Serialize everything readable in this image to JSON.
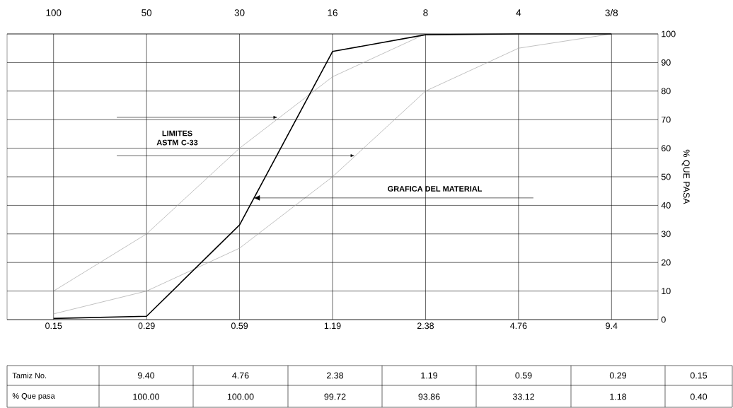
{
  "chart_data": {
    "type": "line",
    "ylabel": "% QUE PASA",
    "categories": [
      "0.15",
      "0.29",
      "0.59",
      "1.19",
      "2.38",
      "4.76",
      "9.4"
    ],
    "series": [
      {
        "color": "#a6a6a6",
        "values": [
          10,
          30,
          60,
          85,
          100,
          100,
          100
        ]
      },
      {
        "color": "#a6a6a6",
        "values": [
          2,
          10,
          25,
          50,
          80,
          95,
          100
        ]
      },
      {
        "name": "GRAFICA DEL MATERIAL",
        "color": "#000000",
        "values": [
          0.4,
          1.18,
          33.12,
          93.86,
          99.72,
          100.0,
          100.0
        ]
      }
    ],
    "ylim": [
      0,
      100
    ],
    "yticks": [
      0,
      10,
      20,
      30,
      40,
      50,
      60,
      70,
      80,
      90,
      100
    ],
    "grid": true,
    "annotations": [
      "LIMITES ASTM C-33",
      "Tamiz No.",
      "% Que pasa",
      "9.40",
      "4.76",
      "2.38",
      "1.19",
      "0.59",
      "0.29",
      "0.15",
      "100.00",
      "100.00",
      "99.72",
      "93.86",
      "33.12",
      "1.18",
      "0.40",
      "100",
      "50",
      "30",
      "16",
      "8",
      "4",
      "3/8"
    ]
  }
}
